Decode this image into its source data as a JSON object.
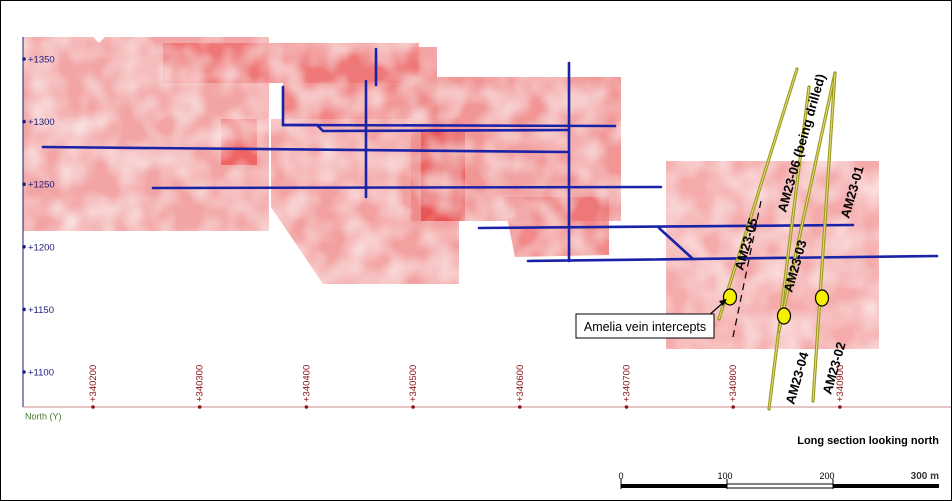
{
  "axis": {
    "elevation_ticks": [
      "+1350",
      "+1300",
      "+1250",
      "+1200",
      "+1150",
      "+1100"
    ],
    "northing_ticks": [
      "+340200",
      "+340300",
      "+340400",
      "+340500",
      "+340600",
      "+340700",
      "+340800",
      "+340900"
    ],
    "north_label": "North (Y)"
  },
  "drillholes": [
    {
      "id": "AM23-05",
      "label": "AM23-05"
    },
    {
      "id": "AM23-06",
      "label": "AM23-06 (being drilled)"
    },
    {
      "id": "AM23-03",
      "label": "AM23-03"
    },
    {
      "id": "AM23-01",
      "label": "AM23-01"
    },
    {
      "id": "AM23-04",
      "label": "AM23-04"
    },
    {
      "id": "AM23-02",
      "label": "AM23-02"
    }
  ],
  "callout": "Amelia vein intercepts",
  "view_caption": "Long section looking north",
  "scale_bar": {
    "labels": [
      "0",
      "100",
      "200"
    ],
    "length_label": "300 m"
  },
  "colors": {
    "stope_fill": "#ef4b4b",
    "workings": "#1a22a8",
    "drillhole": "#9c9a1e",
    "intercept": "#f5ef00",
    "axis_text": "#1c1c7a",
    "northing_text": "#8a1414",
    "north_label_text": "#4a7a2a"
  }
}
